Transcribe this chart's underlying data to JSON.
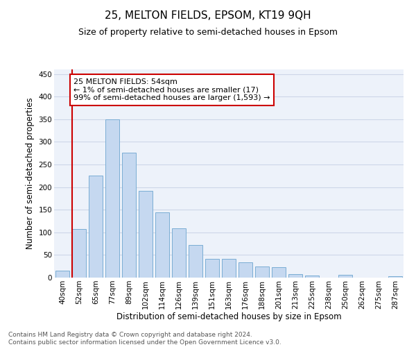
{
  "title": "25, MELTON FIELDS, EPSOM, KT19 9QH",
  "subtitle": "Size of property relative to semi-detached houses in Epsom",
  "xlabel": "Distribution of semi-detached houses by size in Epsom",
  "ylabel": "Number of semi-detached properties",
  "footer_line1": "Contains HM Land Registry data © Crown copyright and database right 2024.",
  "footer_line2": "Contains public sector information licensed under the Open Government Licence v3.0.",
  "bar_labels": [
    "40sqm",
    "52sqm",
    "65sqm",
    "77sqm",
    "89sqm",
    "102sqm",
    "114sqm",
    "126sqm",
    "139sqm",
    "151sqm",
    "163sqm",
    "176sqm",
    "188sqm",
    "201sqm",
    "213sqm",
    "225sqm",
    "238sqm",
    "250sqm",
    "262sqm",
    "275sqm",
    "287sqm"
  ],
  "bar_values": [
    15,
    108,
    225,
    350,
    276,
    191,
    144,
    109,
    72,
    41,
    41,
    34,
    25,
    23,
    8,
    5,
    0,
    6,
    0,
    0,
    3
  ],
  "bar_color": "#c5d8f0",
  "bar_edge_color": "#7aadd4",
  "annotation_text_line1": "25 MELTON FIELDS: 54sqm",
  "annotation_text_line2": "← 1% of semi-detached houses are smaller (17)",
  "annotation_text_line3": "99% of semi-detached houses are larger (1,593) →",
  "vline_color": "#cc0000",
  "annotation_box_edge_color": "#cc0000",
  "ylim": [
    0,
    460
  ],
  "yticks": [
    0,
    50,
    100,
    150,
    200,
    250,
    300,
    350,
    400,
    450
  ],
  "grid_color": "#cdd6e8",
  "background_color": "#edf2fa",
  "title_fontsize": 11,
  "subtitle_fontsize": 9,
  "xlabel_fontsize": 8.5,
  "ylabel_fontsize": 8.5,
  "tick_fontsize": 7.5,
  "footer_fontsize": 6.5,
  "annotation_fontsize": 8
}
